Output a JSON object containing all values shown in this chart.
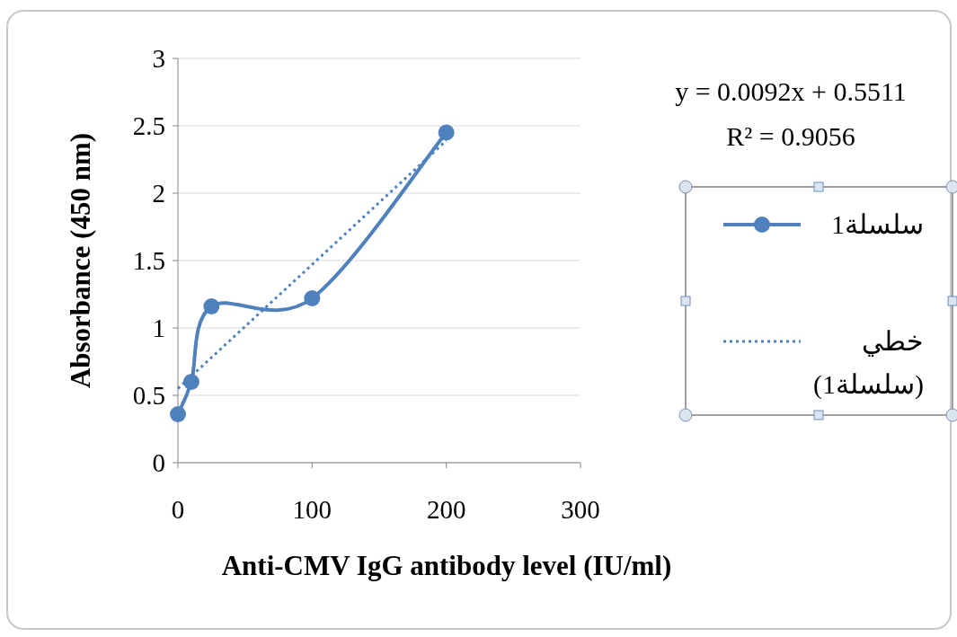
{
  "chart_data": {
    "type": "line",
    "xlabel": "Anti-CMV IgG antibody level (IU/ml)",
    "ylabel": "Absorbance (450 nm)",
    "x": [
      0,
      10,
      25,
      100,
      200
    ],
    "series": [
      {
        "name": "سلسلة1",
        "color": "#4f81bd",
        "values": [
          0.36,
          0.6,
          1.16,
          1.22,
          2.45
        ],
        "marker": "circle",
        "line_style": "solid"
      },
      {
        "name": "خطي (سلسلة1)",
        "type": "line",
        "color": "#4f81bd",
        "x": [
          0,
          200
        ],
        "values": [
          0.55,
          2.39
        ],
        "marker": "none",
        "line_style": "dotted"
      }
    ],
    "xlim": [
      0,
      300
    ],
    "xticks": [
      0,
      100,
      200,
      300
    ],
    "ylim": [
      0,
      3
    ],
    "yticks": [
      0,
      0.5,
      1,
      1.5,
      2,
      2.5,
      3
    ],
    "grid": "y",
    "legend": "right",
    "annotations": [
      "y = 0.0092x + 0.5511",
      "R² = 0.9056"
    ]
  }
}
